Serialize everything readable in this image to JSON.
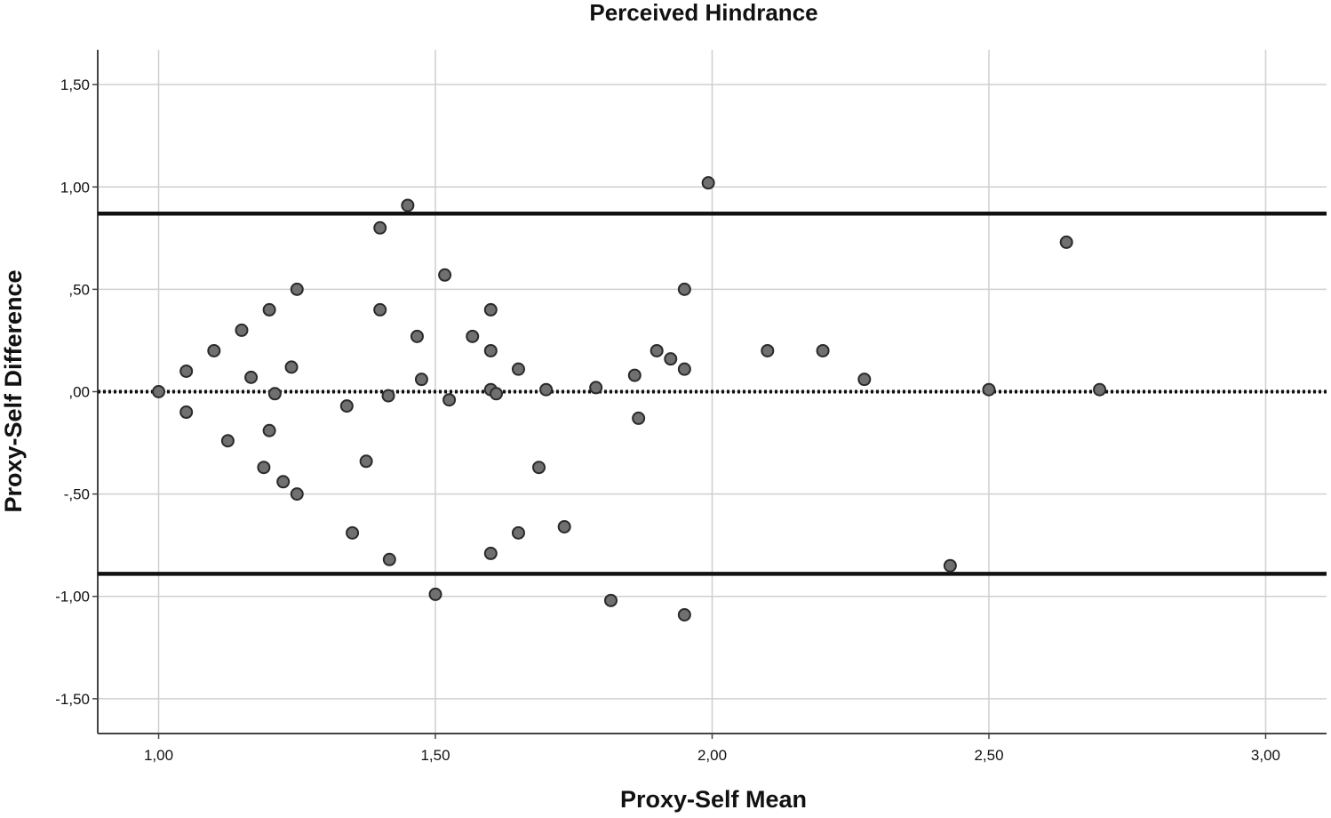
{
  "chart_data": {
    "type": "scatter",
    "title": "Perceived Hindrance",
    "xlabel": "Proxy-Self Mean",
    "ylabel": "Proxy-Self Difference",
    "xlim": [
      0.89,
      3.11
    ],
    "ylim": [
      -1.67,
      1.67
    ],
    "x_ticks": [
      1.0,
      1.5,
      2.0,
      2.5,
      3.0
    ],
    "x_tick_labels": [
      "1,00",
      "1,50",
      "2,00",
      "2,50",
      "3,00"
    ],
    "y_ticks": [
      1.5,
      1.0,
      0.5,
      0.0,
      -0.5,
      -1.0,
      -1.5
    ],
    "y_tick_labels": [
      "1,50",
      "1,00",
      ",50",
      ",00",
      "-,50",
      "-1,00",
      "-1,50"
    ],
    "grid": true,
    "reference_lines": [
      {
        "y": 0.87,
        "style": "solid"
      },
      {
        "y": -0.89,
        "style": "solid"
      },
      {
        "y": 0.0,
        "style": "dotted"
      }
    ],
    "points": [
      {
        "x": 1.0,
        "y": 0.0
      },
      {
        "x": 1.05,
        "y": 0.1
      },
      {
        "x": 1.05,
        "y": -0.1
      },
      {
        "x": 1.1,
        "y": 0.2
      },
      {
        "x": 1.125,
        "y": -0.24
      },
      {
        "x": 1.15,
        "y": 0.3
      },
      {
        "x": 1.167,
        "y": 0.07
      },
      {
        "x": 1.19,
        "y": -0.37
      },
      {
        "x": 1.2,
        "y": 0.4
      },
      {
        "x": 1.2,
        "y": -0.19
      },
      {
        "x": 1.21,
        "y": -0.01
      },
      {
        "x": 1.225,
        "y": -0.44
      },
      {
        "x": 1.24,
        "y": 0.12
      },
      {
        "x": 1.25,
        "y": 0.5
      },
      {
        "x": 1.25,
        "y": -0.5
      },
      {
        "x": 1.34,
        "y": -0.07
      },
      {
        "x": 1.35,
        "y": -0.69
      },
      {
        "x": 1.375,
        "y": -0.34
      },
      {
        "x": 1.4,
        "y": 0.8
      },
      {
        "x": 1.4,
        "y": 0.4
      },
      {
        "x": 1.415,
        "y": -0.02
      },
      {
        "x": 1.417,
        "y": -0.82
      },
      {
        "x": 1.45,
        "y": 0.91
      },
      {
        "x": 1.467,
        "y": 0.27
      },
      {
        "x": 1.475,
        "y": 0.06
      },
      {
        "x": 1.5,
        "y": -0.99
      },
      {
        "x": 1.517,
        "y": 0.57
      },
      {
        "x": 1.525,
        "y": -0.04
      },
      {
        "x": 1.567,
        "y": 0.27
      },
      {
        "x": 1.6,
        "y": 0.4
      },
      {
        "x": 1.6,
        "y": 0.2
      },
      {
        "x": 1.6,
        "y": 0.01
      },
      {
        "x": 1.61,
        "y": -0.01
      },
      {
        "x": 1.6,
        "y": -0.79
      },
      {
        "x": 1.65,
        "y": 0.11
      },
      {
        "x": 1.65,
        "y": -0.69
      },
      {
        "x": 1.687,
        "y": -0.37
      },
      {
        "x": 1.7,
        "y": 0.01
      },
      {
        "x": 1.733,
        "y": -0.66
      },
      {
        "x": 1.79,
        "y": 0.02
      },
      {
        "x": 1.817,
        "y": -1.02
      },
      {
        "x": 1.86,
        "y": 0.08
      },
      {
        "x": 1.867,
        "y": -0.13
      },
      {
        "x": 1.9,
        "y": 0.2
      },
      {
        "x": 1.925,
        "y": 0.16
      },
      {
        "x": 1.95,
        "y": 0.5
      },
      {
        "x": 1.95,
        "y": 0.11
      },
      {
        "x": 1.95,
        "y": -1.09
      },
      {
        "x": 1.993,
        "y": 1.02
      },
      {
        "x": 2.1,
        "y": 0.2
      },
      {
        "x": 2.2,
        "y": 0.2
      },
      {
        "x": 2.275,
        "y": 0.06
      },
      {
        "x": 2.43,
        "y": -0.85
      },
      {
        "x": 2.5,
        "y": 0.01
      },
      {
        "x": 2.64,
        "y": 0.73
      },
      {
        "x": 2.7,
        "y": 0.01
      }
    ]
  }
}
